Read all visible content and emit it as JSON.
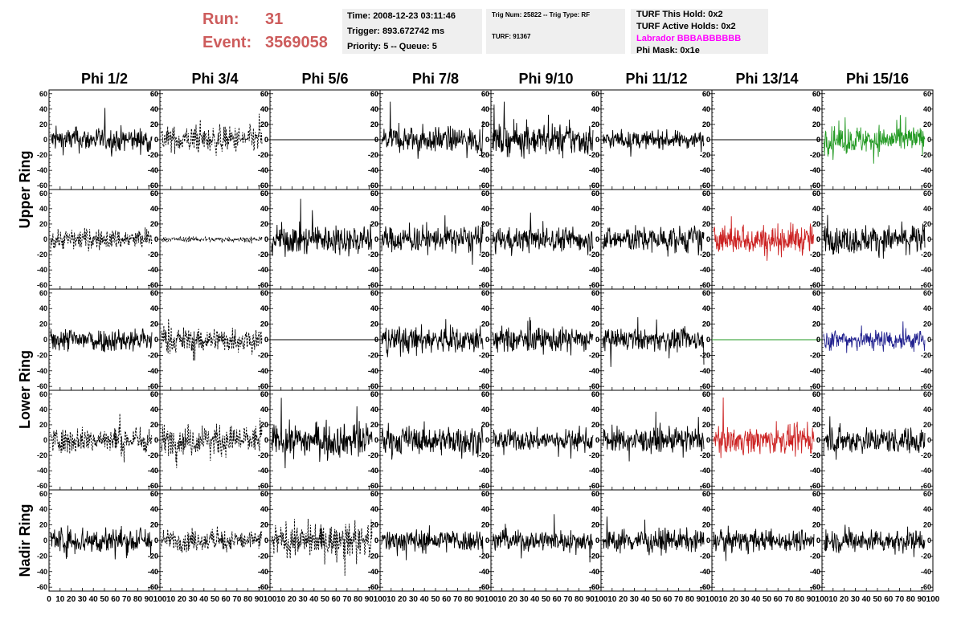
{
  "header": {
    "run_label": "Run:",
    "run_value": "31",
    "event_label": "Event:",
    "event_value": "3569058",
    "time": "Time: 2008-12-23 03:11:46",
    "trigger": "Trigger: 893.672742 ms",
    "priority": "Priority: 5 -- Queue: 5",
    "trig_num": "Trig Num: 25822 -- Trig Type: RF",
    "turf": "TURF: 91367",
    "turf_this_hold": "TURF This Hold: 0x2",
    "turf_active_holds": "TURF Active Holds: 0x2",
    "labrador": "Labrador BBBABBBBBB",
    "phi_mask": "Phi Mask: 0x1e"
  },
  "colors": {
    "run_text": "#cd5c5c",
    "labrador_text": "#ff00ff",
    "info_box_bg": "#efefef",
    "trace_black": "#000000",
    "trace_green": "#229922",
    "trace_red": "#cc2222",
    "trace_blue": "#22228f"
  },
  "chart_data": {
    "type": "line",
    "columns": [
      "Phi 1/2",
      "Phi 3/4",
      "Phi 5/6",
      "Phi 7/8",
      "Phi 9/10",
      "Phi 11/12",
      "Phi 13/14",
      "Phi 15/16"
    ],
    "row_labels": [
      {
        "label": "Upper Ring",
        "rows": [
          0,
          1
        ]
      },
      {
        "label": "Lower Ring",
        "rows": [
          2,
          3
        ]
      },
      {
        "label": "Nadir Ring",
        "rows": [
          4
        ]
      }
    ],
    "x_ticks": [
      "0",
      "10",
      "20",
      "30",
      "40",
      "50",
      "60",
      "70",
      "80",
      "90",
      "100"
    ],
    "xlim": [
      0,
      100
    ],
    "y_ticks": [
      "60",
      "40",
      "20",
      "0",
      "-20",
      "-40",
      "-60"
    ],
    "ylim": [
      -65,
      65
    ],
    "x_tick_label_fragments": [
      "0",
      "102030405060708090100",
      "102030405060708090100",
      "102030405060708090100",
      "102030405060708090100",
      "102030405060708090100",
      "102030405060708090100",
      "102030405060708090100",
      "102030405060708090100"
    ],
    "panels": [
      {
        "row": 0,
        "col": 0,
        "color": "black",
        "style": "solid",
        "amp": 14
      },
      {
        "row": 0,
        "col": 1,
        "color": "black",
        "style": "dashed",
        "amp": 15
      },
      {
        "row": 0,
        "col": 2,
        "color": "black",
        "style": "flat",
        "amp": 0
      },
      {
        "row": 0,
        "col": 3,
        "color": "black",
        "style": "solid",
        "amp": 15
      },
      {
        "row": 0,
        "col": 4,
        "color": "black",
        "style": "solid",
        "amp": 18
      },
      {
        "row": 0,
        "col": 5,
        "color": "black",
        "style": "solid",
        "amp": 10
      },
      {
        "row": 0,
        "col": 6,
        "color": "black",
        "style": "flat",
        "amp": 0
      },
      {
        "row": 0,
        "col": 7,
        "color": "green",
        "style": "solid",
        "amp": 16
      },
      {
        "row": 1,
        "col": 0,
        "color": "black",
        "style": "dashed",
        "amp": 12
      },
      {
        "row": 1,
        "col": 1,
        "color": "black",
        "style": "dashed",
        "amp": 3
      },
      {
        "row": 1,
        "col": 2,
        "color": "black",
        "style": "solid",
        "amp": 17
      },
      {
        "row": 1,
        "col": 3,
        "color": "black",
        "style": "solid",
        "amp": 15
      },
      {
        "row": 1,
        "col": 4,
        "color": "black",
        "style": "solid",
        "amp": 14
      },
      {
        "row": 1,
        "col": 5,
        "color": "black",
        "style": "solid",
        "amp": 15
      },
      {
        "row": 1,
        "col": 6,
        "color": "red",
        "style": "solid",
        "amp": 17
      },
      {
        "row": 1,
        "col": 7,
        "color": "black",
        "style": "solid",
        "amp": 16
      },
      {
        "row": 2,
        "col": 0,
        "color": "black",
        "style": "solid",
        "amp": 14
      },
      {
        "row": 2,
        "col": 1,
        "color": "black",
        "style": "dashed",
        "amp": 14
      },
      {
        "row": 2,
        "col": 2,
        "color": "black",
        "style": "flat",
        "amp": 0
      },
      {
        "row": 2,
        "col": 3,
        "color": "black",
        "style": "solid",
        "amp": 15
      },
      {
        "row": 2,
        "col": 4,
        "color": "black",
        "style": "solid",
        "amp": 14
      },
      {
        "row": 2,
        "col": 5,
        "color": "black",
        "style": "solid",
        "amp": 12
      },
      {
        "row": 2,
        "col": 6,
        "color": "green",
        "style": "flat",
        "amp": 0
      },
      {
        "row": 2,
        "col": 7,
        "color": "blue",
        "style": "solid",
        "amp": 12
      },
      {
        "row": 3,
        "col": 0,
        "color": "black",
        "style": "dashed",
        "amp": 15
      },
      {
        "row": 3,
        "col": 1,
        "color": "black",
        "style": "dashed",
        "amp": 17
      },
      {
        "row": 3,
        "col": 2,
        "color": "black",
        "style": "solid",
        "amp": 19
      },
      {
        "row": 3,
        "col": 3,
        "color": "black",
        "style": "solid",
        "amp": 16
      },
      {
        "row": 3,
        "col": 4,
        "color": "black",
        "style": "solid",
        "amp": 12
      },
      {
        "row": 3,
        "col": 5,
        "color": "black",
        "style": "solid",
        "amp": 14
      },
      {
        "row": 3,
        "col": 6,
        "color": "red",
        "style": "solid",
        "amp": 15
      },
      {
        "row": 3,
        "col": 7,
        "color": "black",
        "style": "solid",
        "amp": 15
      },
      {
        "row": 4,
        "col": 0,
        "color": "black",
        "style": "solid",
        "amp": 16
      },
      {
        "row": 4,
        "col": 1,
        "color": "black",
        "style": "dashed",
        "amp": 12
      },
      {
        "row": 4,
        "col": 2,
        "color": "black",
        "style": "dashed",
        "amp": 18
      },
      {
        "row": 4,
        "col": 3,
        "color": "black",
        "style": "solid",
        "amp": 13
      },
      {
        "row": 4,
        "col": 4,
        "color": "black",
        "style": "solid",
        "amp": 12
      },
      {
        "row": 4,
        "col": 5,
        "color": "black",
        "style": "solid",
        "amp": 13
      },
      {
        "row": 4,
        "col": 6,
        "color": "black",
        "style": "solid",
        "amp": 12
      },
      {
        "row": 4,
        "col": 7,
        "color": "black",
        "style": "solid",
        "amp": 13
      }
    ]
  }
}
